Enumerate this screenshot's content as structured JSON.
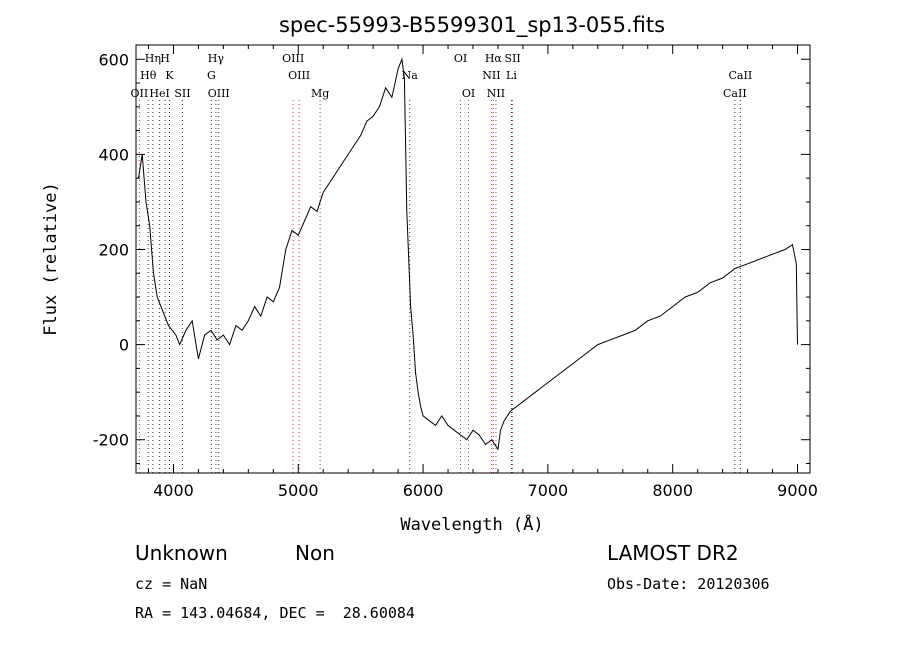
{
  "chart_data": {
    "type": "line",
    "title": "spec-55993-B5599301_sp13-055.fits",
    "xlabel": "Wavelength (Å)",
    "ylabel": "Flux (relative)",
    "xlim": [
      3700,
      9100
    ],
    "ylim": [
      -270,
      630
    ],
    "xticks": [
      4000,
      5000,
      6000,
      7000,
      8000,
      9000
    ],
    "yticks": [
      -200,
      0,
      200,
      400,
      600
    ],
    "series": [
      {
        "x": [
          3720,
          3750,
          3780,
          3810,
          3840,
          3870,
          3900,
          3930,
          3960,
          3990,
          4020,
          4050,
          4100,
          4150,
          4200,
          4250,
          4300,
          4350,
          4400,
          4450,
          4500,
          4550,
          4600,
          4650,
          4700,
          4750,
          4800,
          4850,
          4900,
          4950,
          5000,
          5050,
          5100,
          5150,
          5200,
          5250,
          5300,
          5350,
          5400,
          5450,
          5500,
          5550,
          5600,
          5650,
          5700,
          5750,
          5800,
          5830,
          5850,
          5870,
          5890,
          5900,
          5920,
          5940,
          5960,
          5980,
          6000,
          6050,
          6100,
          6150,
          6200,
          6250,
          6300,
          6350,
          6400,
          6450,
          6500,
          6550,
          6600,
          6620,
          6650,
          6700,
          6750,
          6800,
          6850,
          6900,
          6950,
          7000,
          7050,
          7100,
          7150,
          7200,
          7300,
          7400,
          7500,
          7600,
          7700,
          7800,
          7900,
          8000,
          8100,
          8200,
          8300,
          8400,
          8500,
          8600,
          8700,
          8800,
          8900,
          8960,
          8990,
          9000
        ],
        "values": [
          350,
          400,
          300,
          250,
          150,
          100,
          80,
          60,
          40,
          30,
          20,
          0,
          30,
          50,
          -30,
          20,
          30,
          10,
          20,
          0,
          40,
          30,
          50,
          80,
          60,
          100,
          90,
          120,
          200,
          240,
          230,
          260,
          290,
          280,
          320,
          340,
          360,
          380,
          400,
          420,
          440,
          470,
          480,
          500,
          540,
          520,
          580,
          600,
          560,
          280,
          150,
          80,
          20,
          -60,
          -100,
          -130,
          -150,
          -160,
          -170,
          -150,
          -170,
          -180,
          -190,
          -200,
          -180,
          -190,
          -210,
          -200,
          -220,
          -180,
          -160,
          -140,
          -130,
          -120,
          -110,
          -100,
          -90,
          -80,
          -70,
          -60,
          -50,
          -40,
          -20,
          0,
          10,
          20,
          30,
          50,
          60,
          80,
          100,
          110,
          130,
          140,
          160,
          170,
          180,
          190,
          200,
          210,
          170,
          0
        ]
      }
    ],
    "line_markers": [
      {
        "label": "OII",
        "wave": 3727,
        "row": 3
      },
      {
        "label": "Hθ",
        "wave": 3798,
        "row": 2
      },
      {
        "label": "Hη",
        "wave": 3835,
        "row": 1
      },
      {
        "label": "HeI",
        "wave": 3889,
        "row": 3
      },
      {
        "label": "H",
        "wave": 3933,
        "row": 1
      },
      {
        "label": "K",
        "wave": 3968,
        "row": 2
      },
      {
        "label": "SII",
        "wave": 4072,
        "row": 3
      },
      {
        "label": "Hγ",
        "wave": 4340,
        "row": 1
      },
      {
        "label": "G",
        "wave": 4304,
        "row": 2
      },
      {
        "label": "OIII",
        "wave": 4363,
        "row": 3
      },
      {
        "label": "OIII",
        "wave": 4959,
        "row": 1
      },
      {
        "label": "OIII",
        "wave": 5007,
        "row": 2
      },
      {
        "label": "Mg",
        "wave": 5175,
        "row": 3
      },
      {
        "label": "Na",
        "wave": 5893,
        "row": 2
      },
      {
        "label": "OI",
        "wave": 6300,
        "row": 1
      },
      {
        "label": "OI",
        "wave": 6364,
        "row": 3
      },
      {
        "label": "Hα",
        "wave": 6563,
        "row": 1
      },
      {
        "label": "SII",
        "wave": 6717,
        "row": 1
      },
      {
        "label": "NII",
        "wave": 6548,
        "row": 2
      },
      {
        "label": "NII",
        "wave": 6584,
        "row": 3
      },
      {
        "label": "Li",
        "wave": 6708,
        "row": 2
      },
      {
        "label": "CaII",
        "wave": 8542,
        "row": 2
      },
      {
        "label": "CaII",
        "wave": 8498,
        "row": 3
      }
    ]
  },
  "footer": {
    "class_label": "Unknown",
    "subclass_label": "Non",
    "survey": "LAMOST DR2",
    "redshift": "cz = NaN",
    "obs_date": "Obs-Date: 20120306",
    "coords": "RA = 143.04684, DEC =  28.60084"
  }
}
